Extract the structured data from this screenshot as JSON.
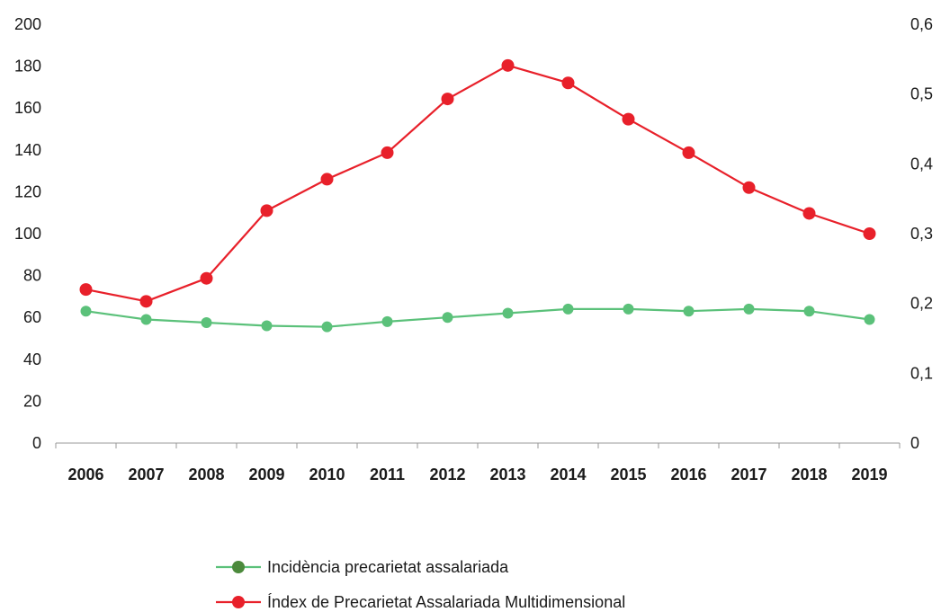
{
  "chart_data": {
    "type": "line",
    "categories": [
      "2006",
      "2007",
      "2008",
      "2009",
      "2010",
      "2011",
      "2012",
      "2013",
      "2014",
      "2015",
      "2016",
      "2017",
      "2018",
      "2019"
    ],
    "y_left": {
      "ylim": [
        0,
        200
      ],
      "ticks": [
        0,
        20,
        40,
        60,
        80,
        100,
        120,
        140,
        160,
        180,
        200
      ],
      "tick_labels": [
        "0",
        "20",
        "40",
        "60",
        "80",
        "100",
        "120",
        "140",
        "160",
        "180",
        "200"
      ]
    },
    "y_right": {
      "ylim": [
        0,
        0.6
      ],
      "ticks": [
        0,
        0.1,
        0.2,
        0.3,
        0.4,
        0.5,
        0.6
      ],
      "tick_labels": [
        "0",
        "0,1",
        "0,2",
        "0,3",
        "0,4",
        "0,5",
        "0,6"
      ]
    },
    "series": [
      {
        "name": "Incidència precarietat assalariada",
        "axis": "left",
        "color": "#5bc17a",
        "legend_marker_color": "#4c8a3c",
        "values": [
          63,
          59,
          57.5,
          56,
          55.5,
          58,
          60,
          62,
          64,
          64,
          63,
          64,
          63,
          59
        ]
      },
      {
        "name": "Índex de Precarietat Assalariada Multidimensional",
        "axis": "right",
        "color": "#e8202a",
        "legend_marker_color": "#e8202a",
        "values": [
          0.22,
          0.203,
          0.236,
          0.333,
          0.378,
          0.416,
          0.493,
          0.541,
          0.516,
          0.464,
          0.416,
          0.366,
          0.329,
          0.3
        ]
      }
    ],
    "grid": false,
    "legend_position": "bottom"
  }
}
